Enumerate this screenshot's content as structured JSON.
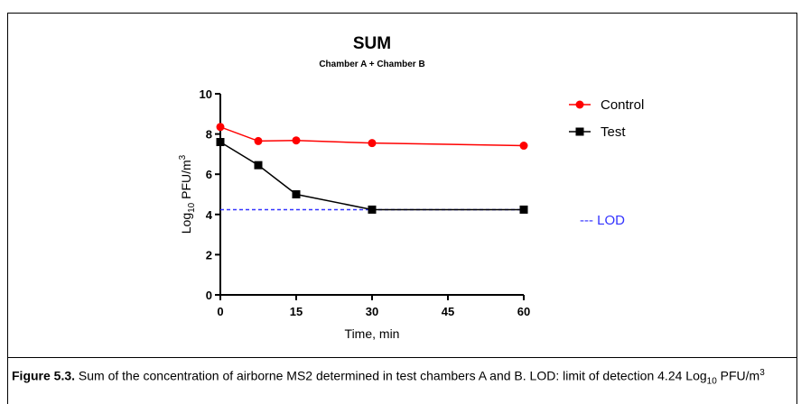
{
  "chart_data": {
    "type": "line",
    "title": "SUM",
    "subtitle": "Chamber A + Chamber B",
    "xlabel": "Time, min",
    "ylabel": {
      "prefix": "Log",
      "sub": "10",
      "mid": " PFU/m",
      "sup": "3"
    },
    "xlim": [
      0,
      60
    ],
    "ylim": [
      0,
      10
    ],
    "xticks": [
      0,
      15,
      30,
      45,
      60
    ],
    "yticks": [
      0,
      2,
      4,
      6,
      8,
      10
    ],
    "xtick_labels": [
      "0",
      "15",
      "30",
      "45",
      "60"
    ],
    "ytick_labels": [
      "0",
      "2",
      "4",
      "6",
      "8",
      "10"
    ],
    "grid": false,
    "legend_position": "right",
    "series": [
      {
        "name": "Control",
        "color": "#ff0000",
        "marker": "circle",
        "x": [
          0,
          7.5,
          15,
          30,
          60
        ],
        "y": [
          8.35,
          7.65,
          7.68,
          7.55,
          7.42
        ]
      },
      {
        "name": "Test",
        "color": "#000000",
        "marker": "square",
        "x": [
          0,
          7.5,
          15,
          30,
          60
        ],
        "y": [
          7.6,
          6.45,
          5.0,
          4.24,
          4.24
        ]
      }
    ],
    "reference_lines": [
      {
        "name": "--- LOD",
        "y": 4.24,
        "color": "#3333ff",
        "style": "dashed"
      }
    ]
  },
  "caption": {
    "label": "Figure 5.3.",
    "text": " Sum of the concentration of airborne MS2 determined in test chambers A and B. LOD: limit of detection 4.24 Log",
    "sub": "10",
    "tail": " PFU/m",
    "sup": "3"
  }
}
